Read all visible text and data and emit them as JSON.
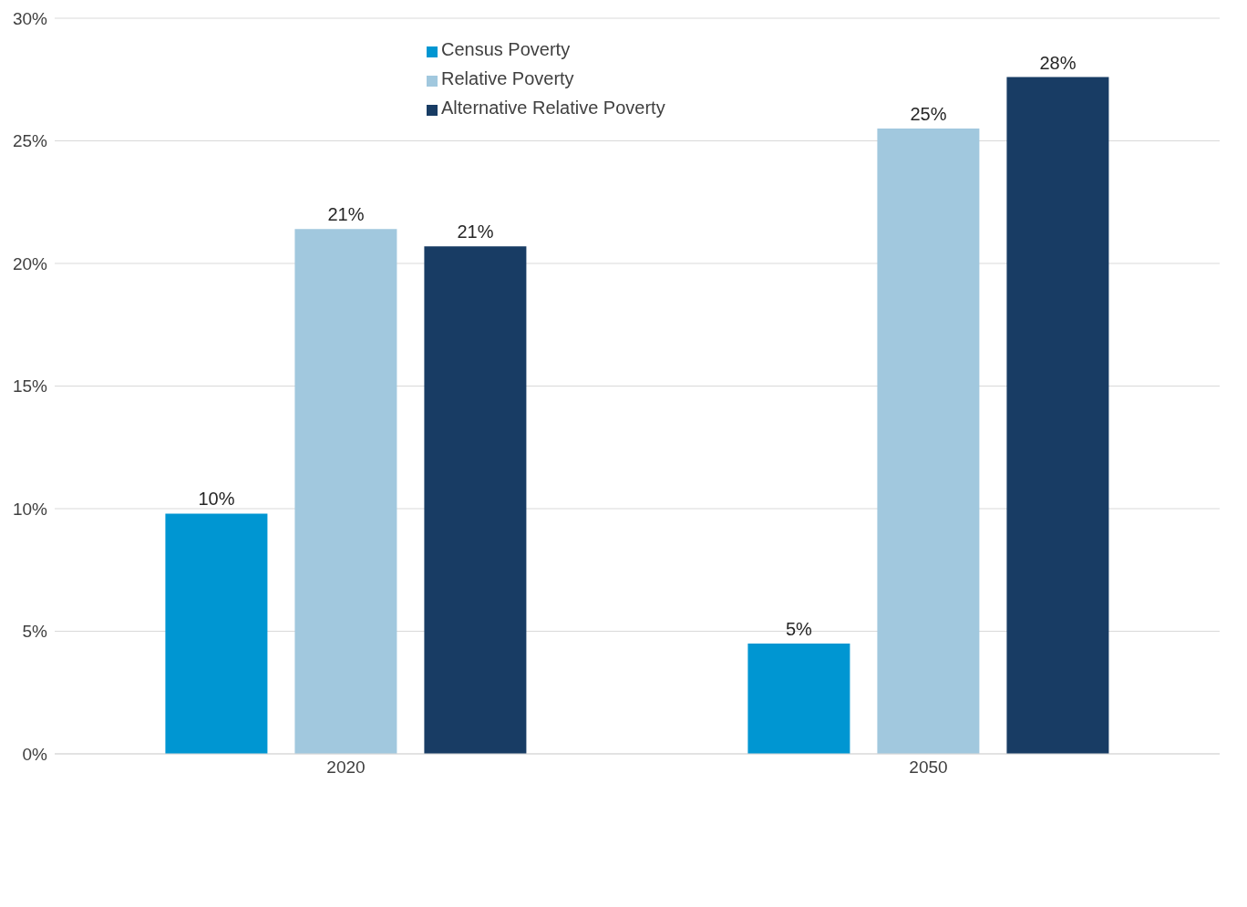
{
  "chart_data": {
    "type": "bar",
    "categories": [
      "2020",
      "2050"
    ],
    "series": [
      {
        "name": "Census Poverty",
        "color": "#0096d2",
        "values": [
          9.8,
          4.5
        ],
        "value_labels": [
          "10%",
          "5%"
        ]
      },
      {
        "name": "Relative Poverty",
        "color": "#a1c8de",
        "values": [
          21.4,
          25.5
        ],
        "value_labels": [
          "21%",
          "25%"
        ]
      },
      {
        "name": "Alternative Relative Poverty",
        "color": "#183c64",
        "values": [
          20.7,
          27.6
        ],
        "value_labels": [
          "21%",
          "28%"
        ]
      }
    ],
    "ylim": [
      0,
      30
    ],
    "yticks": [
      {
        "value": 0,
        "label": "0%"
      },
      {
        "value": 5,
        "label": "5%"
      },
      {
        "value": 10,
        "label": "10%"
      },
      {
        "value": 15,
        "label": "15%"
      },
      {
        "value": 20,
        "label": "20%"
      },
      {
        "value": 25,
        "label": "25%"
      },
      {
        "value": 30,
        "label": "30%"
      }
    ],
    "grid": "y",
    "legend": "top"
  }
}
